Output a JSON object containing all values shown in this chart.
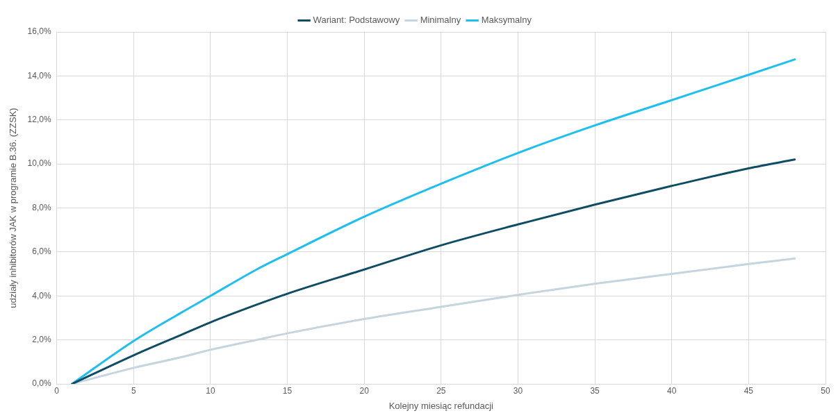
{
  "chart_data": {
    "type": "line",
    "xlabel": "Kolejny miesiąc refundacji",
    "ylabel": "udziały inhibitorów JAK w programie B.36. (ZZSK)",
    "xlim": [
      0,
      50
    ],
    "xticks": [
      0,
      5,
      10,
      15,
      20,
      25,
      30,
      35,
      40,
      45,
      50
    ],
    "ylim": [
      0,
      16
    ],
    "yticks": [
      {
        "value": 0,
        "label": "0,0%"
      },
      {
        "value": 2,
        "label": "2,0%"
      },
      {
        "value": 4,
        "label": "4,0%"
      },
      {
        "value": 6,
        "label": "6,0%"
      },
      {
        "value": 8,
        "label": "8,0%"
      },
      {
        "value": 10,
        "label": "10,0%"
      },
      {
        "value": 12,
        "label": "12,0%"
      },
      {
        "value": 14,
        "label": "14,0%"
      },
      {
        "value": 16,
        "label": "16,0%"
      }
    ],
    "x": [
      1,
      5,
      8,
      10,
      13,
      15,
      20,
      25,
      30,
      35,
      40,
      45,
      48
    ],
    "grid": true,
    "legend": "top",
    "marker": "none",
    "line_style": "solid",
    "series": [
      {
        "name": "Wariant: Podstawowy",
        "color": "#0e4d64",
        "values": [
          0,
          1.3,
          2.2,
          2.8,
          3.6,
          4.1,
          5.2,
          6.3,
          7.25,
          8.15,
          9.0,
          9.8,
          10.2
        ]
      },
      {
        "name": "Minimalny",
        "color": "#c5d5df",
        "values": [
          0,
          0.73,
          1.2,
          1.55,
          2.0,
          2.3,
          2.95,
          3.5,
          4.05,
          4.55,
          5.0,
          5.45,
          5.7
        ]
      },
      {
        "name": "Maksymalny",
        "color": "#1cbff0",
        "values": [
          0,
          1.95,
          3.2,
          4.0,
          5.2,
          5.9,
          7.6,
          9.1,
          10.5,
          11.75,
          12.9,
          14.05,
          14.75
        ]
      }
    ]
  }
}
